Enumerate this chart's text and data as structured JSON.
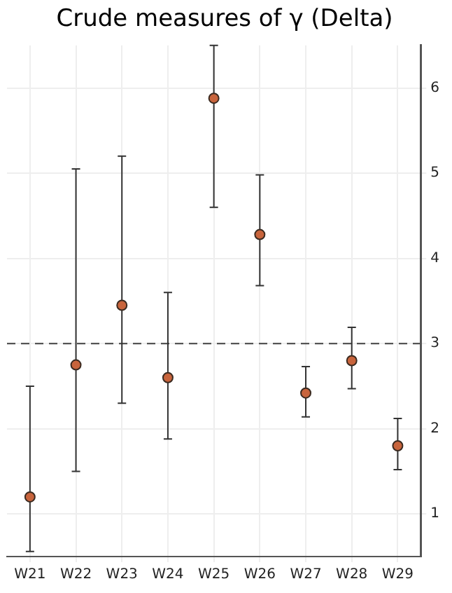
{
  "chart_data": {
    "type": "scatter",
    "title": "Crude measures of γ (Delta)",
    "categories": [
      "W21",
      "W22",
      "W23",
      "W24",
      "W25",
      "W26",
      "W27",
      "W28",
      "W29"
    ],
    "series": [
      {
        "color": "#c8643c",
        "values": [
          1.2,
          2.75,
          3.45,
          2.6,
          5.88,
          4.28,
          2.42,
          2.8,
          1.8
        ],
        "errors": [
          [
            0.56,
            2.5
          ],
          [
            1.5,
            5.05
          ],
          [
            2.3,
            5.2
          ],
          [
            1.88,
            3.6
          ],
          [
            4.6,
            6.5
          ],
          [
            3.68,
            4.98
          ],
          [
            2.14,
            2.73
          ],
          [
            2.47,
            3.19
          ],
          [
            1.52,
            2.12
          ]
        ]
      }
    ],
    "ylim": [
      0.5,
      6.5
    ],
    "yticks": [
      1,
      2,
      3,
      4,
      5,
      6
    ],
    "grid": true,
    "legend": false,
    "marker": "circle",
    "ref_lines": [
      {
        "axis": "y",
        "value": 3,
        "line_style": "dashed",
        "color": "#555555"
      }
    ]
  }
}
